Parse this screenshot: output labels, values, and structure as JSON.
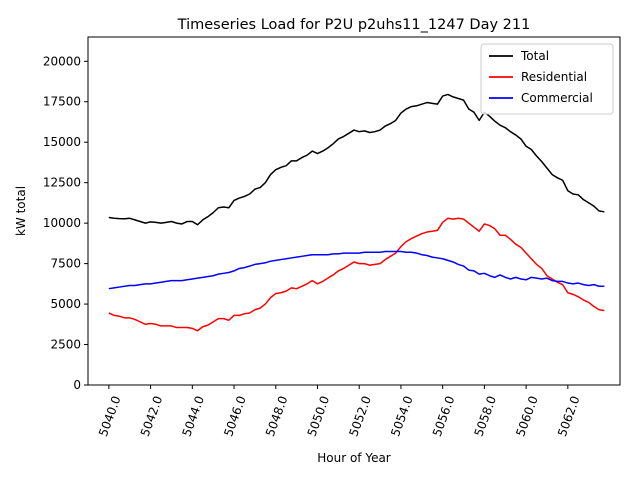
{
  "chart_data": {
    "type": "line",
    "title": "Timeseries Load for P2U p2uhs11_1247  Day 211",
    "xlabel": "Hour of Year",
    "ylabel": "kW total",
    "xlim": [
      5039.0,
      5064.5
    ],
    "ylim": [
      0,
      21500
    ],
    "xticks": [
      5040,
      5042,
      5044,
      5046,
      5048,
      5050,
      5052,
      5054,
      5056,
      5058,
      5060,
      5062
    ],
    "xtick_labels": [
      "5040.0",
      "5042.0",
      "5044.0",
      "5046.0",
      "5048.0",
      "5050.0",
      "5052.0",
      "5054.0",
      "5056.0",
      "5058.0",
      "5060.0",
      "5062.0"
    ],
    "yticks": [
      0,
      2500,
      5000,
      7500,
      10000,
      12500,
      15000,
      17500,
      20000
    ],
    "ytick_labels": [
      "0",
      "2500",
      "5000",
      "7500",
      "10000",
      "12500",
      "15000",
      "17500",
      "20000"
    ],
    "grid": false,
    "legend_position": "top-right",
    "x": [
      5040.0,
      5040.25,
      5040.5,
      5040.75,
      5041.0,
      5041.25,
      5041.5,
      5041.75,
      5042.0,
      5042.25,
      5042.5,
      5042.75,
      5043.0,
      5043.25,
      5043.5,
      5043.75,
      5044.0,
      5044.25,
      5044.5,
      5044.75,
      5045.0,
      5045.25,
      5045.5,
      5045.75,
      5046.0,
      5046.25,
      5046.5,
      5046.75,
      5047.0,
      5047.25,
      5047.5,
      5047.75,
      5048.0,
      5048.25,
      5048.5,
      5048.75,
      5049.0,
      5049.25,
      5049.5,
      5049.75,
      5050.0,
      5050.25,
      5050.5,
      5050.75,
      5051.0,
      5051.25,
      5051.5,
      5051.75,
      5052.0,
      5052.25,
      5052.5,
      5052.75,
      5053.0,
      5053.25,
      5053.5,
      5053.75,
      5054.0,
      5054.25,
      5054.5,
      5054.75,
      5055.0,
      5055.25,
      5055.5,
      5055.75,
      5056.0,
      5056.25,
      5056.5,
      5056.75,
      5057.0,
      5057.25,
      5057.5,
      5057.75,
      5058.0,
      5058.25,
      5058.5,
      5058.75,
      5059.0,
      5059.25,
      5059.5,
      5059.75,
      5060.0,
      5060.25,
      5060.5,
      5060.75,
      5061.0,
      5061.25,
      5061.5,
      5061.75,
      5062.0,
      5062.25,
      5062.5,
      5062.75,
      5063.0,
      5063.25,
      5063.5,
      5063.75
    ],
    "series": [
      {
        "name": "Total",
        "color": "#000000",
        "values": [
          10350,
          10300,
          10280,
          10270,
          10300,
          10200,
          10100,
          10000,
          10080,
          10050,
          10000,
          10050,
          10100,
          10000,
          9950,
          10100,
          10100,
          9900,
          10200,
          10400,
          10650,
          10950,
          11000,
          10950,
          11400,
          11550,
          11650,
          11800,
          12100,
          12200,
          12500,
          13000,
          13300,
          13450,
          13550,
          13850,
          13850,
          14050,
          14200,
          14450,
          14300,
          14450,
          14650,
          14900,
          15200,
          15350,
          15550,
          15750,
          15650,
          15700,
          15600,
          15650,
          15750,
          16000,
          16150,
          16350,
          16800,
          17050,
          17200,
          17250,
          17350,
          17450,
          17400,
          17350,
          17850,
          17950,
          17800,
          17700,
          17600,
          17050,
          16850,
          16350,
          16850,
          16600,
          16300,
          16050,
          15900,
          15650,
          15450,
          15200,
          14750,
          14550,
          14150,
          13800,
          13400,
          13000,
          12800,
          12650,
          12000,
          11800,
          11750,
          11450,
          11250,
          11050,
          10750,
          10700
        ]
      },
      {
        "name": "Residential",
        "color": "#ff0000",
        "values": [
          4450,
          4300,
          4250,
          4150,
          4150,
          4050,
          3900,
          3750,
          3800,
          3750,
          3650,
          3650,
          3650,
          3550,
          3550,
          3550,
          3500,
          3350,
          3600,
          3700,
          3900,
          4100,
          4100,
          4000,
          4300,
          4300,
          4400,
          4450,
          4650,
          4750,
          5000,
          5400,
          5650,
          5700,
          5800,
          6000,
          5950,
          6100,
          6250,
          6450,
          6250,
          6400,
          6600,
          6800,
          7050,
          7200,
          7400,
          7600,
          7500,
          7500,
          7400,
          7450,
          7500,
          7750,
          7950,
          8150,
          8550,
          8850,
          9050,
          9200,
          9350,
          9450,
          9500,
          9550,
          10050,
          10300,
          10250,
          10300,
          10250,
          10000,
          9750,
          9500,
          9950,
          9850,
          9650,
          9250,
          9250,
          9000,
          8700,
          8500,
          8150,
          7800,
          7450,
          7200,
          6750,
          6550,
          6350,
          6200,
          5700,
          5600,
          5450,
          5250,
          5100,
          4850,
          4650,
          4600
        ]
      },
      {
        "name": "Commercial",
        "color": "#0000ff",
        "values": [
          5950,
          6000,
          6050,
          6100,
          6150,
          6150,
          6200,
          6250,
          6250,
          6300,
          6350,
          6400,
          6450,
          6450,
          6450,
          6500,
          6550,
          6600,
          6650,
          6700,
          6750,
          6850,
          6900,
          6950,
          7050,
          7200,
          7250,
          7350,
          7450,
          7500,
          7550,
          7650,
          7700,
          7750,
          7800,
          7850,
          7900,
          7950,
          8000,
          8050,
          8050,
          8050,
          8050,
          8100,
          8100,
          8150,
          8150,
          8150,
          8150,
          8200,
          8200,
          8200,
          8200,
          8250,
          8250,
          8250,
          8250,
          8200,
          8200,
          8150,
          8050,
          8000,
          7900,
          7850,
          7800,
          7700,
          7600,
          7450,
          7350,
          7100,
          7050,
          6850,
          6900,
          6750,
          6650,
          6800,
          6650,
          6550,
          6650,
          6550,
          6500,
          6650,
          6600,
          6550,
          6600,
          6450,
          6400,
          6400,
          6300,
          6250,
          6300,
          6200,
          6150,
          6200,
          6100,
          6100
        ]
      }
    ]
  }
}
